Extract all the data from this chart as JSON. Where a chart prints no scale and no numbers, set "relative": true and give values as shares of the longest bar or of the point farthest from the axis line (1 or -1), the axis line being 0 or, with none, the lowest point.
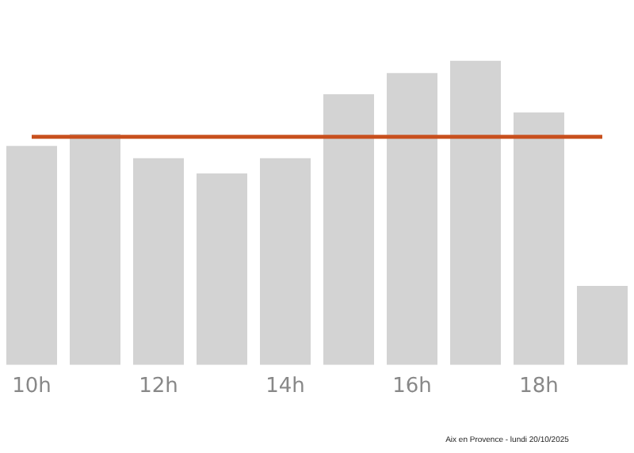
{
  "chart_data": {
    "type": "bar",
    "relative": true,
    "categories": [
      "10h",
      null,
      "12h",
      null,
      "14h",
      null,
      "16h",
      null,
      "18h",
      null
    ],
    "values": [
      0.72,
      0.76,
      0.68,
      0.63,
      0.68,
      0.89,
      0.96,
      1,
      0.83,
      0.26
    ],
    "color": "#d3d3d3",
    "ref_lines": [
      {
        "axis": "y",
        "value": 0.75,
        "color": "#c8501e"
      }
    ],
    "annotations": [
      "Aix en Provence - lundi 20/10/2025"
    ],
    "grid": false,
    "legend": false
  }
}
